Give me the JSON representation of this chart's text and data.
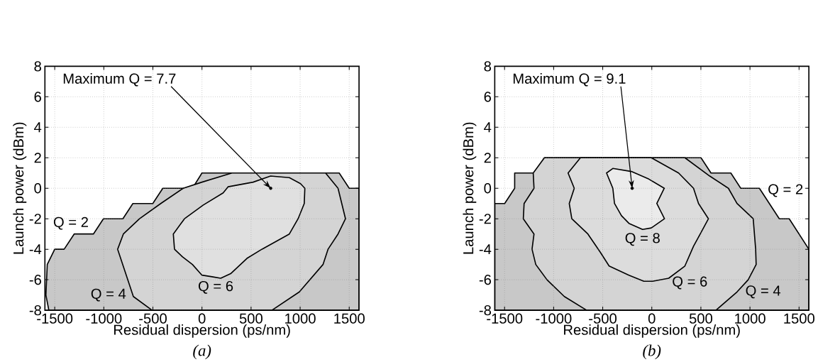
{
  "chart_data": [
    {
      "type": "area",
      "title": "(a)",
      "xlabel": "Residual dispersion (ps/nm)",
      "ylabel": "Launch power (dBm)",
      "xlim": [
        -1600,
        1600
      ],
      "ylim": [
        -8,
        8
      ],
      "xticks": [
        -1500,
        -1000,
        -500,
        0,
        500,
        1000,
        1500
      ],
      "yticks": [
        -8,
        -6,
        -4,
        -2,
        0,
        2,
        4,
        6,
        8
      ],
      "grid": true,
      "series": [
        {
          "color": "#c8c8c8",
          "x": [
            -1560,
            -1590,
            -1576,
            -1500,
            -1404,
            -1302,
            -1106,
            -1004,
            -806,
            -704,
            -501,
            -399,
            -97,
            0,
            1398,
            1500,
            1600,
            1600
          ],
          "values": [
            -8,
            -7,
            -5,
            -4,
            -4,
            -3,
            -3,
            -2,
            -2,
            -1,
            -1,
            0,
            0,
            1,
            1,
            0,
            0,
            -8
          ]
        },
        {
          "color": "#d4d4d4",
          "x": [
            -508,
            -699,
            -859,
            -801,
            -636,
            -420,
            -191,
            0,
            305,
            1259,
            1386,
            1462,
            1386,
            1284,
            1233,
            992,
            712
          ],
          "values": [
            -8,
            -7.1,
            -4,
            -3,
            -2,
            -1,
            0,
            0.4,
            1,
            1,
            0,
            -2,
            -3,
            -4,
            -5,
            -6.8,
            -8
          ]
        },
        {
          "color": "#e0e0e0",
          "x": [
            699,
            890,
            1004,
            1048,
            1042,
            979,
            890,
            610,
            458,
            292,
            191,
            102,
            0,
            -97,
            -198,
            -280,
            -292,
            -178,
            13,
            216,
            267,
            521
          ],
          "values": [
            0.8,
            0.7,
            0.3,
            0,
            -1,
            -2,
            -3,
            -4,
            -4.6,
            -5.6,
            -5.9,
            -5.8,
            -5.7,
            -5,
            -4.5,
            -4,
            -3,
            -2,
            -1.1,
            -0.3,
            0.1,
            0.4
          ]
        },
        {
          "type": "scatter",
          "color": "#000000",
          "x": [
            700
          ],
          "values": [
            0
          ]
        }
      ],
      "annotations": [
        {
          "text": "Maximum Q = 7.7",
          "x": 700,
          "y": 0
        },
        "Q = 2",
        "Q = 4",
        "Q = 6"
      ]
    },
    {
      "type": "area",
      "title": "(b)",
      "xlabel": "Residual dispersion (ps/nm)",
      "ylabel": "Launch power (dBm)",
      "xlim": [
        -1600,
        1600
      ],
      "ylim": [
        -8,
        8
      ],
      "xticks": [
        -1500,
        -1000,
        -500,
        0,
        500,
        1000,
        1500
      ],
      "yticks": [
        -8,
        -6,
        -4,
        -2,
        0,
        2,
        4,
        6,
        8
      ],
      "grid": true,
      "series": [
        {
          "color": "#c8c8c8",
          "x": [
            -1600,
            -1499,
            -1397,
            -1397,
            -1200,
            -1094,
            501,
            603,
            805,
            906,
            1096,
            1299,
            1400,
            1600,
            1600,
            -1600
          ],
          "values": [
            -1,
            -1,
            0,
            1,
            1,
            2,
            2,
            1,
            1,
            0,
            0,
            -2,
            -2,
            -4,
            -8,
            -8
          ]
        },
        {
          "color": "#d4d4d4",
          "x": [
            -663,
            -891,
            -1068,
            -1182,
            -1220,
            -1200,
            -1309,
            -1301,
            -1200,
            -1208,
            -1094,
            337,
            590,
            780,
            868,
            1033,
            1058,
            1063,
            982,
            868,
            653
          ],
          "values": [
            -8,
            -7.1,
            -6,
            -5,
            -4,
            -3,
            -2,
            -1,
            0,
            1,
            2,
            2,
            0.8,
            0,
            -1,
            -2,
            -4,
            -5,
            -6,
            -6.8,
            -8
          ]
        },
        {
          "color": "#dcdcdc",
          "x": [
            -727,
            -853,
            -790,
            -841,
            -815,
            -651,
            -524,
            -435,
            -233,
            -81,
            8,
            172,
            337,
            425,
            501,
            577,
            476,
            425,
            273,
            -5
          ],
          "values": [
            2,
            1,
            0,
            -1,
            -2,
            -3,
            -4.2,
            -5.1,
            -5.7,
            -6.1,
            -6.1,
            -5.9,
            -5.1,
            -3.8,
            -2.9,
            -2,
            -1,
            0,
            1,
            2
          ]
        },
        {
          "color": "#ebebeb",
          "x": [
            -461,
            -397,
            -208,
            -30,
            127,
            51,
            129,
            -5,
            -94,
            -233,
            -309,
            -380,
            -397
          ],
          "values": [
            1,
            1.3,
            1.1,
            0.6,
            0,
            -1,
            -2,
            -2.6,
            -2.7,
            -2.3,
            -1.8,
            -1,
            0
          ]
        },
        {
          "type": "scatter",
          "color": "#000000",
          "x": [
            -200
          ],
          "values": [
            0
          ]
        }
      ],
      "annotations": [
        {
          "text": "Maximum Q = 9.1",
          "x": -200,
          "y": 0
        },
        "Q = 2",
        "Q = 4",
        "Q = 6",
        "Q = 8"
      ]
    }
  ]
}
